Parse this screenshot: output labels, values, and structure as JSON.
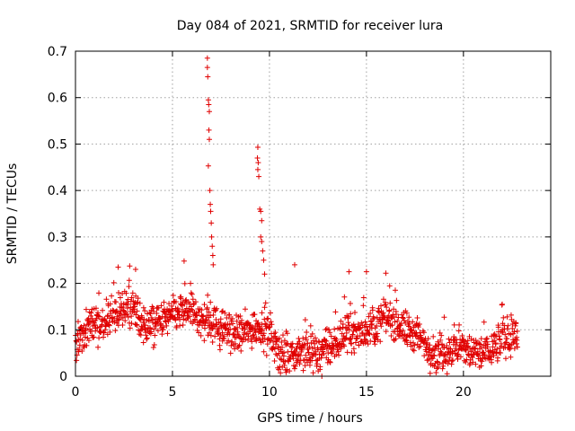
{
  "chart_data": {
    "type": "scatter",
    "title": "Day 084 of 2021, SRMTID for receiver lura",
    "xlabel": "GPS time / hours",
    "ylabel": "SRMTID / TECUs",
    "xlim": [
      0,
      24.5
    ],
    "ylim": [
      0,
      0.7
    ],
    "xticks": [
      0,
      5,
      10,
      15,
      20
    ],
    "xtick_labels": [
      "0",
      "5",
      "10",
      "15",
      "20"
    ],
    "yticks": [
      0,
      0.1,
      0.2,
      0.3,
      0.4,
      0.5,
      0.6,
      0.7
    ],
    "ytick_labels": [
      "0",
      "0.1",
      "0.2",
      "0.3",
      "0.4",
      "0.5",
      "0.6",
      "0.7"
    ],
    "grid": true,
    "marker": "+",
    "color": "#e00000",
    "series": [
      {
        "name": "SRMTID",
        "x_range_hours": [
          0,
          22.8
        ],
        "baseline_profile": [
          [
            0.0,
            0.06
          ],
          [
            0.5,
            0.1
          ],
          [
            1.0,
            0.12
          ],
          [
            1.5,
            0.11
          ],
          [
            2.0,
            0.13
          ],
          [
            2.5,
            0.14
          ],
          [
            3.0,
            0.15
          ],
          [
            3.5,
            0.11
          ],
          [
            4.0,
            0.11
          ],
          [
            4.5,
            0.12
          ],
          [
            5.0,
            0.13
          ],
          [
            5.5,
            0.14
          ],
          [
            6.0,
            0.14
          ],
          [
            6.5,
            0.12
          ],
          [
            7.0,
            0.12
          ],
          [
            7.5,
            0.1
          ],
          [
            8.0,
            0.1
          ],
          [
            8.5,
            0.09
          ],
          [
            9.0,
            0.1
          ],
          [
            9.5,
            0.11
          ],
          [
            10.0,
            0.09
          ],
          [
            10.5,
            0.05
          ],
          [
            11.0,
            0.04
          ],
          [
            11.5,
            0.06
          ],
          [
            12.0,
            0.05
          ],
          [
            12.5,
            0.05
          ],
          [
            13.0,
            0.06
          ],
          [
            13.5,
            0.07
          ],
          [
            14.0,
            0.1
          ],
          [
            14.5,
            0.09
          ],
          [
            15.0,
            0.1
          ],
          [
            15.5,
            0.11
          ],
          [
            16.0,
            0.13
          ],
          [
            16.5,
            0.12
          ],
          [
            17.0,
            0.1
          ],
          [
            17.5,
            0.09
          ],
          [
            18.0,
            0.07
          ],
          [
            18.5,
            0.05
          ],
          [
            19.0,
            0.05
          ],
          [
            19.5,
            0.06
          ],
          [
            20.0,
            0.06
          ],
          [
            20.5,
            0.05
          ],
          [
            21.0,
            0.05
          ],
          [
            21.5,
            0.06
          ],
          [
            22.0,
            0.08
          ],
          [
            22.8,
            0.09
          ]
        ],
        "peaks": [
          {
            "x": 6.8,
            "y": 0.685
          },
          {
            "x": 6.8,
            "y": 0.665
          },
          {
            "x": 6.82,
            "y": 0.645
          },
          {
            "x": 6.85,
            "y": 0.595
          },
          {
            "x": 6.87,
            "y": 0.585
          },
          {
            "x": 6.9,
            "y": 0.57
          },
          {
            "x": 6.88,
            "y": 0.53
          },
          {
            "x": 6.9,
            "y": 0.51
          },
          {
            "x": 6.85,
            "y": 0.453
          },
          {
            "x": 6.93,
            "y": 0.4
          },
          {
            "x": 6.95,
            "y": 0.37
          },
          {
            "x": 6.97,
            "y": 0.355
          },
          {
            "x": 7.0,
            "y": 0.33
          },
          {
            "x": 7.02,
            "y": 0.3
          },
          {
            "x": 7.05,
            "y": 0.28
          },
          {
            "x": 7.08,
            "y": 0.26
          },
          {
            "x": 7.1,
            "y": 0.24
          },
          {
            "x": 9.4,
            "y": 0.493
          },
          {
            "x": 9.38,
            "y": 0.47
          },
          {
            "x": 9.42,
            "y": 0.46
          },
          {
            "x": 9.4,
            "y": 0.445
          },
          {
            "x": 9.45,
            "y": 0.43
          },
          {
            "x": 9.5,
            "y": 0.36
          },
          {
            "x": 9.55,
            "y": 0.355
          },
          {
            "x": 9.6,
            "y": 0.335
          },
          {
            "x": 9.55,
            "y": 0.3
          },
          {
            "x": 9.6,
            "y": 0.29
          },
          {
            "x": 9.65,
            "y": 0.27
          },
          {
            "x": 9.7,
            "y": 0.25
          },
          {
            "x": 9.75,
            "y": 0.22
          },
          {
            "x": 5.6,
            "y": 0.248
          },
          {
            "x": 11.3,
            "y": 0.24
          },
          {
            "x": 2.2,
            "y": 0.235
          },
          {
            "x": 3.1,
            "y": 0.23
          },
          {
            "x": 14.1,
            "y": 0.225
          },
          {
            "x": 15.0,
            "y": 0.225
          },
          {
            "x": 16.0,
            "y": 0.222
          },
          {
            "x": 12.7,
            "y": 0.0
          },
          {
            "x": 22.0,
            "y": 0.155
          }
        ]
      }
    ]
  }
}
